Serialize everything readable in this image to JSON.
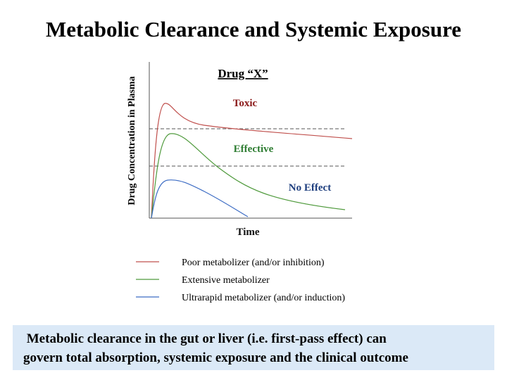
{
  "slide": {
    "title": "Metabolic Clearance and Systemic Exposure",
    "chart": {
      "title": "Drug “X”",
      "y_label": "Drug Concentration in Plasma",
      "x_label": "Time",
      "zones": [
        "Toxic",
        "Effective",
        "No Effect"
      ]
    },
    "legend": [
      {
        "label": "Poor metabolizer (and/or inhibition)",
        "color": "#c0504d"
      },
      {
        "label": "Extensive metabolizer",
        "color": "#4f9a3c"
      },
      {
        "label": "Ultrarapid metabolizer (and/or induction)",
        "color": "#3c6cc4"
      }
    ],
    "footnote": [
      " Metabolic clearance in the gut or liver (i.e. first-pass effect) can",
      "govern total absorption, systemic exposure and the clinical outcome"
    ]
  }
}
